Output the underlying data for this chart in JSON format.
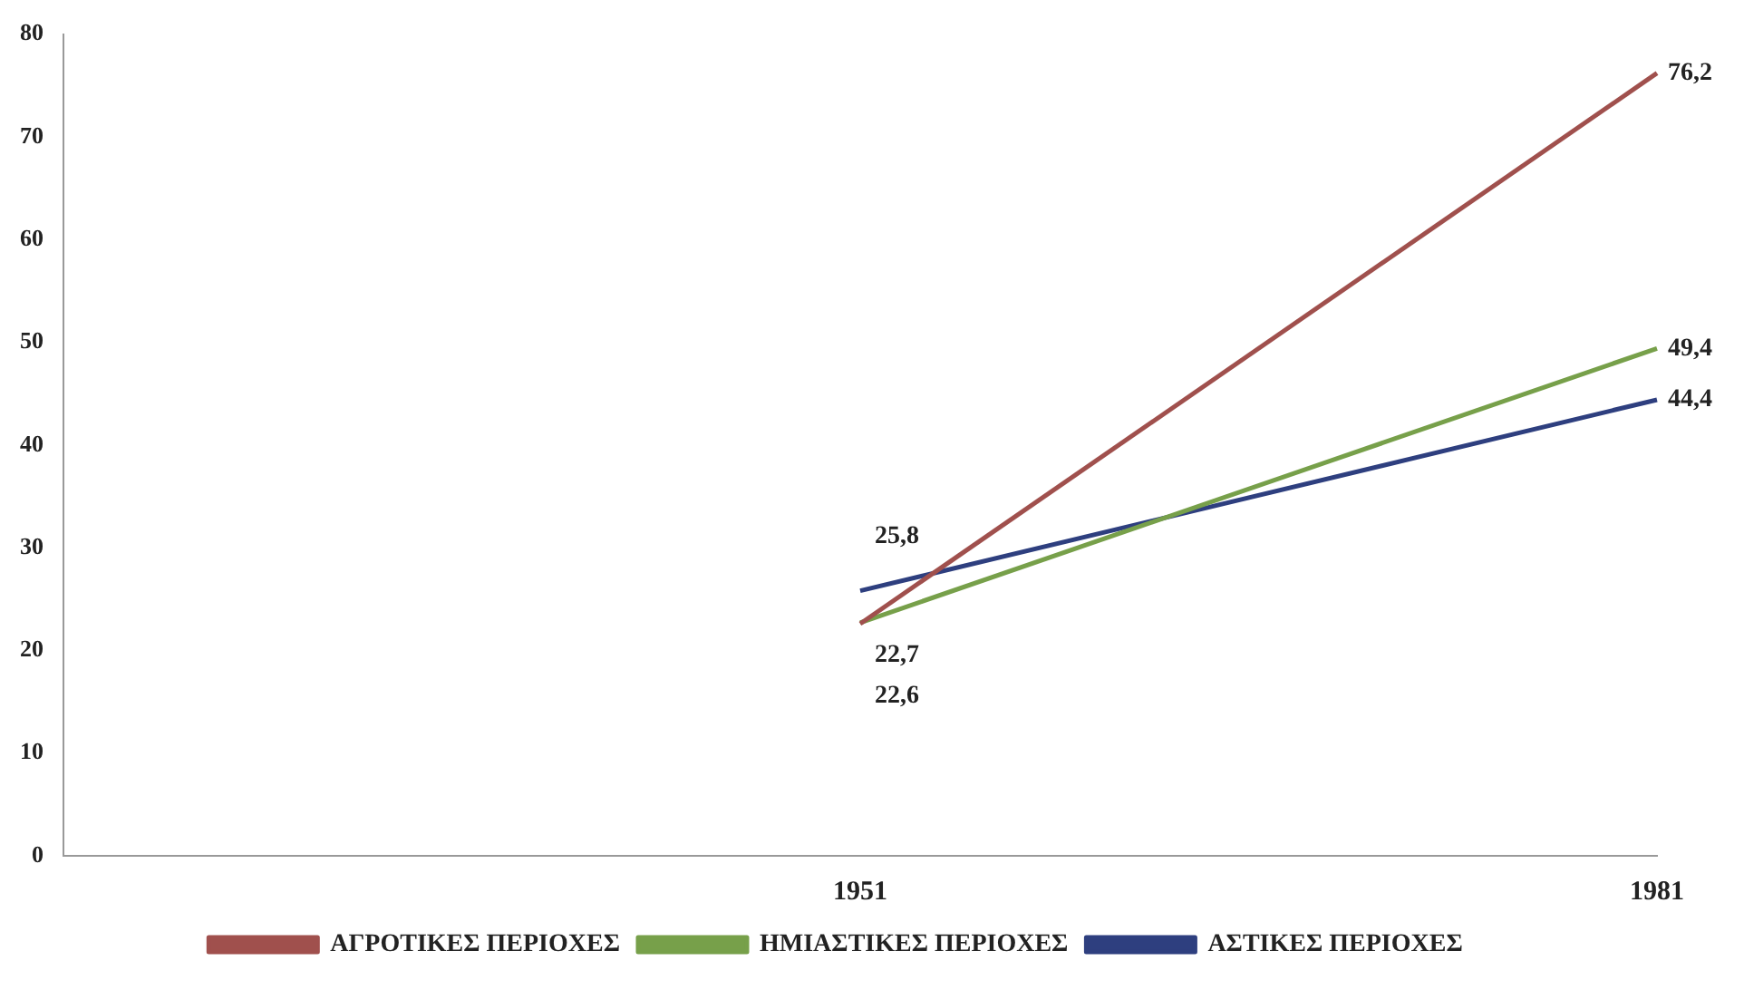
{
  "chart_data": {
    "type": "line",
    "categories": [
      null,
      "1951",
      "1981"
    ],
    "series": [
      {
        "name": "ΑΓΡΟΤΙΚΕΣ ΠΕΡΙΟΧΕΣ",
        "color": "#a0504d",
        "values": [
          null,
          22.6,
          76.2
        ],
        "value_labels": [
          null,
          "22,6",
          "76,2"
        ]
      },
      {
        "name": "ΗΜΙΑΣΤΙΚΕΣ ΠΕΡΙΟΧΕΣ",
        "color": "#77a04a",
        "values": [
          null,
          22.7,
          49.4
        ],
        "value_labels": [
          null,
          "22,7",
          "49,4"
        ]
      },
      {
        "name": "ΑΣΤΙΚΕΣ ΠΕΡΙΟΧΕΣ",
        "color": "#2e3f7f",
        "values": [
          null,
          25.8,
          44.4
        ],
        "value_labels": [
          null,
          "25,8",
          "44,4"
        ]
      }
    ],
    "ylim": [
      0,
      80
    ],
    "yticks": [
      0,
      10,
      20,
      30,
      40,
      50,
      60,
      70,
      80
    ],
    "grid": false,
    "legend": "bottom",
    "marker": "none"
  }
}
